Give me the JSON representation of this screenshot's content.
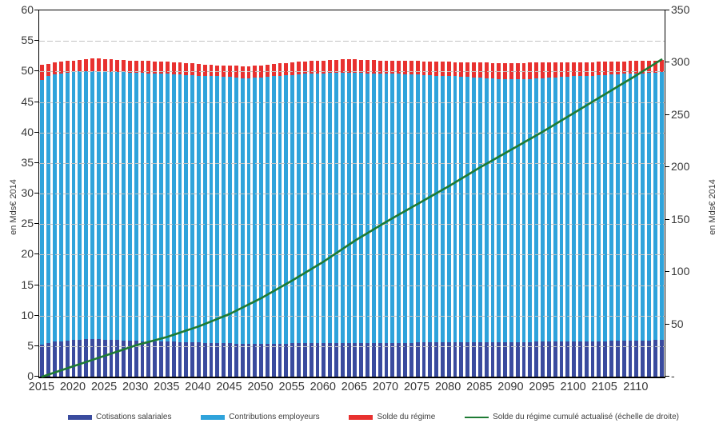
{
  "chart_data": {
    "type": "bar",
    "subtype": "stacked-bars-with-line",
    "title": "",
    "x_start_year": 2015,
    "x_end_year": 2114,
    "x_tick_labels": [
      "2015",
      "2020",
      "2025",
      "2030",
      "2035",
      "2040",
      "2045",
      "2050",
      "2055",
      "2060",
      "2065",
      "2070",
      "2075",
      "2080",
      "2085",
      "2090",
      "2095",
      "2100",
      "2105",
      "2110"
    ],
    "left_axis": {
      "title": "en Mds€ 2014",
      "min": 0,
      "max": 60,
      "step": 5,
      "tick_labels": [
        "0",
        "5",
        "10",
        "15",
        "20",
        "25",
        "30",
        "35",
        "40",
        "45",
        "50",
        "55",
        "60"
      ]
    },
    "right_axis": {
      "title": "en Mds€ 2014",
      "min": 0,
      "max": 350,
      "step": 50,
      "tick_labels": [
        "-",
        "50",
        "100",
        "150",
        "200",
        "250",
        "300",
        "350"
      ]
    },
    "grid": true,
    "legend_position": "bottom",
    "series": [
      {
        "name": "Cotisations salariales",
        "type": "bar",
        "color": "#3A4B9E",
        "axis": "left",
        "values": [
          5.2,
          5.5,
          5.7,
          5.8,
          5.9,
          6.0,
          6.0,
          6.1,
          6.1,
          6.1,
          6.0,
          6.0,
          6.0,
          5.9,
          5.9,
          5.9,
          5.8,
          5.8,
          5.8,
          5.7,
          5.7,
          5.7,
          5.6,
          5.6,
          5.6,
          5.6,
          5.5,
          5.5,
          5.5,
          5.5,
          5.5,
          5.4,
          5.4,
          5.4,
          5.4,
          5.4,
          5.4,
          5.4,
          5.4,
          5.4,
          5.5,
          5.5,
          5.5,
          5.5,
          5.5,
          5.5,
          5.5,
          5.5,
          5.5,
          5.5,
          5.5,
          5.5,
          5.5,
          5.5,
          5.5,
          5.5,
          5.5,
          5.5,
          5.5,
          5.5,
          5.6,
          5.6,
          5.6,
          5.6,
          5.6,
          5.6,
          5.6,
          5.6,
          5.6,
          5.6,
          5.6,
          5.6,
          5.6,
          5.7,
          5.7,
          5.7,
          5.7,
          5.7,
          5.7,
          5.7,
          5.7,
          5.7,
          5.8,
          5.8,
          5.8,
          5.8,
          5.8,
          5.8,
          5.8,
          5.8,
          5.8,
          5.9,
          5.9,
          5.9,
          5.9,
          5.9,
          5.9,
          5.9,
          6.0,
          6.0
        ]
      },
      {
        "name": "Contributions employeurs",
        "type": "bar",
        "color": "#2FA3DB",
        "axis": "left",
        "values": [
          43.4,
          43.7,
          43.8,
          43.9,
          43.9,
          44.0,
          44.1,
          44.0,
          44.0,
          43.9,
          44.0,
          43.9,
          43.9,
          44.0,
          43.9,
          43.9,
          44.0,
          43.9,
          43.9,
          43.9,
          43.9,
          43.8,
          43.9,
          43.8,
          43.8,
          43.7,
          43.8,
          43.7,
          43.7,
          43.6,
          43.6,
          43.6,
          43.5,
          43.5,
          43.6,
          43.6,
          43.7,
          43.8,
          43.9,
          44.0,
          43.9,
          44.0,
          44.1,
          44.1,
          44.2,
          44.2,
          44.3,
          44.3,
          44.3,
          44.3,
          44.3,
          44.3,
          44.2,
          44.2,
          44.2,
          44.1,
          44.1,
          44.1,
          44.0,
          44.0,
          43.9,
          43.8,
          43.8,
          43.7,
          43.7,
          43.6,
          43.6,
          43.5,
          43.5,
          43.4,
          43.4,
          43.3,
          43.3,
          43.1,
          43.1,
          43.1,
          43.1,
          43.1,
          43.1,
          43.2,
          43.2,
          43.3,
          43.2,
          43.3,
          43.3,
          43.4,
          43.4,
          43.5,
          43.5,
          43.6,
          43.6,
          43.6,
          43.6,
          43.7,
          43.7,
          43.8,
          43.8,
          43.9,
          43.8,
          43.9
        ]
      },
      {
        "name": "Solde du régime",
        "type": "bar",
        "color": "#E8312F",
        "axis": "left",
        "values": [
          2.5,
          2.0,
          2.0,
          1.9,
          1.9,
          1.8,
          1.8,
          1.9,
          2.0,
          2.1,
          2.0,
          2.1,
          2.0,
          2.0,
          2.0,
          2.0,
          1.9,
          2.0,
          1.9,
          2.0,
          2.0,
          2.0,
          2.0,
          2.0,
          1.9,
          1.9,
          1.8,
          1.9,
          1.8,
          1.9,
          1.8,
          1.9,
          1.9,
          1.9,
          1.9,
          2.0,
          2.0,
          2.0,
          2.0,
          2.0,
          2.1,
          2.1,
          2.0,
          2.1,
          2.0,
          2.1,
          2.1,
          2.1,
          2.2,
          2.2,
          2.2,
          2.1,
          2.2,
          2.2,
          2.1,
          2.2,
          2.2,
          2.1,
          2.2,
          2.2,
          2.2,
          2.2,
          2.2,
          2.3,
          2.3,
          2.4,
          2.3,
          2.4,
          2.4,
          2.5,
          2.5,
          2.6,
          2.5,
          2.6,
          2.6,
          2.6,
          2.6,
          2.6,
          2.7,
          2.6,
          2.6,
          2.5,
          2.5,
          2.4,
          2.4,
          2.3,
          2.3,
          2.2,
          2.2,
          2.2,
          2.2,
          2.1,
          2.1,
          2.0,
          2.1,
          2.0,
          2.0,
          2.0,
          2.0,
          2.0
        ]
      },
      {
        "name": "Solde du régime cumulé actualisé (échelle de droite)",
        "type": "line",
        "color": "#1E7B34",
        "axis": "right",
        "values": [
          0,
          2,
          4,
          6,
          8,
          10,
          12,
          14,
          16,
          18,
          20,
          22,
          24,
          26,
          28,
          30,
          31.6,
          33.2,
          34.8,
          36.4,
          38,
          40,
          42,
          44,
          46,
          48,
          50.4,
          52.8,
          55.2,
          57.6,
          60,
          63,
          66,
          69,
          72,
          75,
          78.4,
          81.8,
          85.2,
          88.6,
          92,
          95.6,
          99.2,
          102.8,
          106.4,
          110,
          114,
          118,
          122,
          126,
          130,
          133.6,
          137.2,
          140.8,
          144.4,
          148,
          151.4,
          154.8,
          158.2,
          161.6,
          165,
          168.4,
          171.8,
          175.2,
          178.6,
          182,
          185.6,
          189.2,
          192.8,
          196.4,
          200,
          203.4,
          206.8,
          210.2,
          213.6,
          217,
          220.4,
          223.8,
          227.2,
          230.6,
          234,
          237.6,
          241.2,
          244.8,
          248.4,
          252,
          255.6,
          259.2,
          262.8,
          266.4,
          270,
          273.6,
          277.2,
          280.8,
          284.4,
          288,
          291.8,
          295.5,
          299.3,
          303
        ]
      }
    ]
  },
  "colors": {
    "axis_line": "#000000",
    "gridline": "#c3c3c3",
    "tick_text": "#383838",
    "legend_text": "#404040"
  }
}
